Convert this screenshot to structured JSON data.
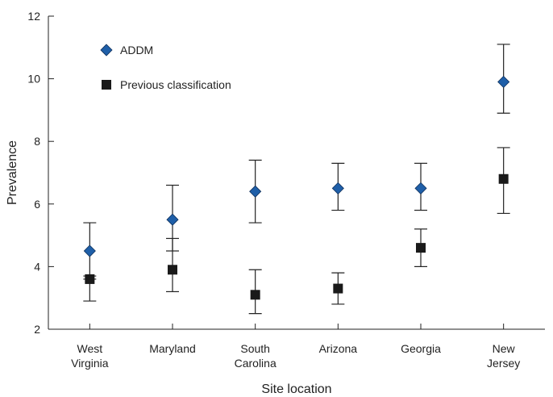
{
  "chart_data": {
    "type": "scatter",
    "title": "",
    "xlabel": "Site location",
    "ylabel": "Prevalence",
    "ylim": [
      2,
      12
    ],
    "yticks": [
      2,
      4,
      6,
      8,
      10,
      12
    ],
    "grid": false,
    "legend_position": "top-left",
    "categories": [
      [
        "West",
        "Virginia"
      ],
      [
        "Maryland"
      ],
      [
        "South",
        "Carolina"
      ],
      [
        "Arizona"
      ],
      [
        "Georgia"
      ],
      [
        "New",
        "Jersey"
      ]
    ],
    "series": [
      {
        "name": "ADDM",
        "marker": "diamond",
        "color": "#1f5fa8",
        "values": [
          4.5,
          5.5,
          6.4,
          6.5,
          6.5,
          9.9
        ],
        "lower": [
          3.6,
          4.5,
          5.4,
          5.8,
          5.8,
          8.9
        ],
        "upper": [
          5.4,
          6.6,
          7.4,
          7.3,
          7.3,
          11.1
        ]
      },
      {
        "name": "Previous classification",
        "marker": "square",
        "color": "#1a1a1a",
        "values": [
          3.6,
          3.9,
          3.1,
          3.3,
          4.6,
          6.8
        ],
        "lower": [
          2.9,
          3.2,
          2.5,
          2.8,
          4.0,
          5.7
        ],
        "upper": [
          3.7,
          4.9,
          3.9,
          3.8,
          5.2,
          7.8
        ]
      }
    ]
  }
}
